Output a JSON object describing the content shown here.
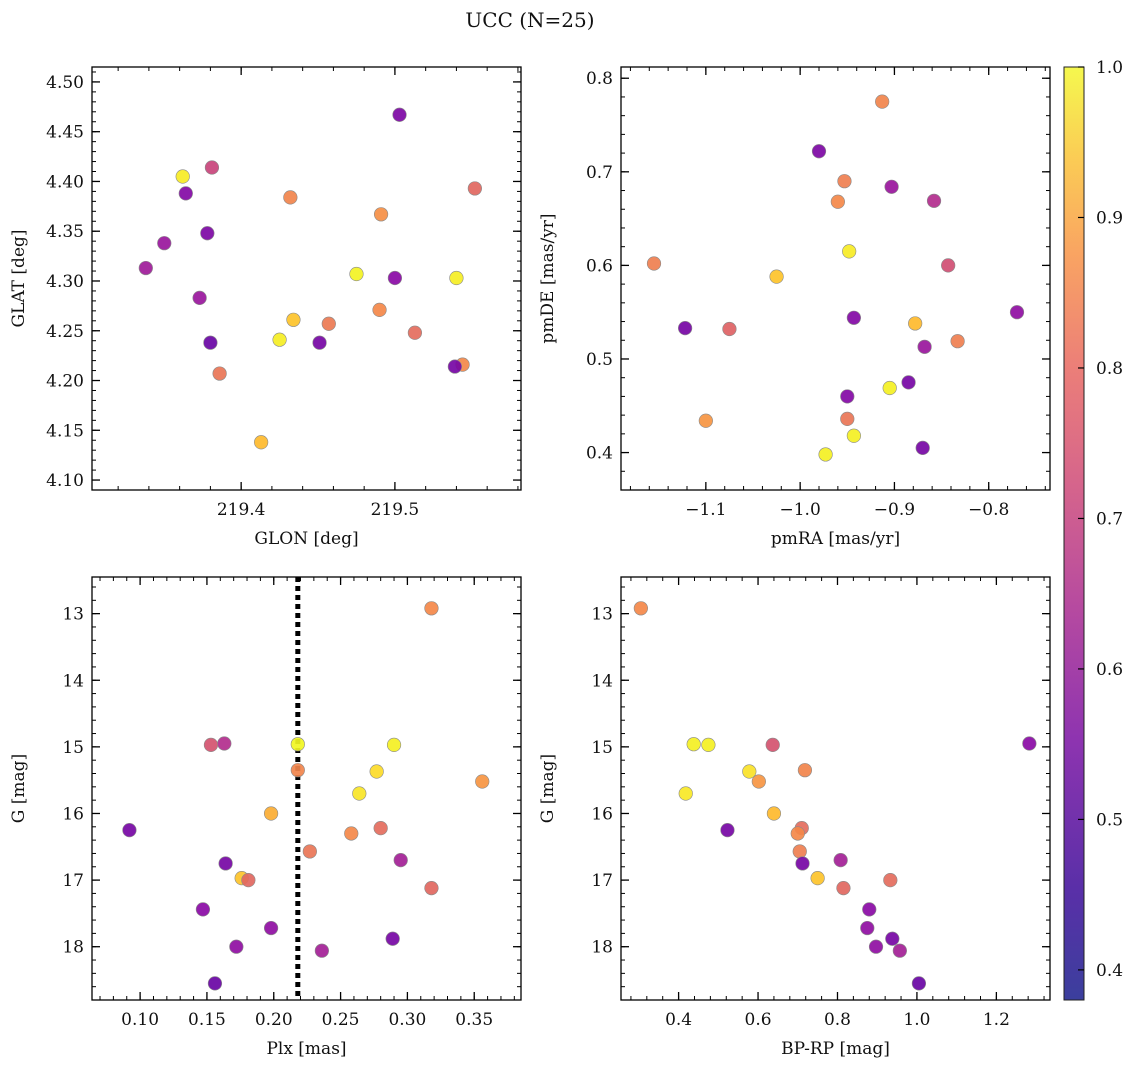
{
  "figure": {
    "title": "UCC (N=25)"
  },
  "colorbar": {
    "range": [
      0.38,
      1.0
    ],
    "ticks": [
      0.4,
      0.5,
      0.6,
      0.7,
      0.8,
      0.9,
      1.0
    ],
    "tick_labels": [
      "0.4",
      "0.5",
      "0.6",
      "0.7",
      "0.8",
      "0.9",
      "1.0"
    ],
    "colormap": "plasma"
  },
  "chart_data": [
    {
      "type": "scatter",
      "xlabel": "GLON [deg]",
      "ylabel": "GLAT [deg]",
      "xlim": [
        219.303,
        219.582
      ],
      "ylim": [
        4.09,
        4.515
      ],
      "xticks": [
        219.4,
        219.5
      ],
      "xtick_labels": [
        "219.4",
        "219.5"
      ],
      "yticks": [
        4.1,
        4.15,
        4.2,
        4.25,
        4.3,
        4.35,
        4.4,
        4.45,
        4.5
      ],
      "ytick_labels": [
        "4.10",
        "4.15",
        "4.20",
        "4.25",
        "4.30",
        "4.35",
        "4.40",
        "4.45",
        "4.50"
      ],
      "grid": false,
      "points": [
        {
          "x": 219.503,
          "y": 4.467,
          "c": 0.45
        },
        {
          "x": 219.381,
          "y": 4.414,
          "c": 0.6
        },
        {
          "x": 219.362,
          "y": 4.405,
          "c": 0.95
        },
        {
          "x": 219.552,
          "y": 4.393,
          "c": 0.67
        },
        {
          "x": 219.364,
          "y": 4.388,
          "c": 0.46
        },
        {
          "x": 219.432,
          "y": 4.384,
          "c": 0.73
        },
        {
          "x": 219.491,
          "y": 4.367,
          "c": 0.75
        },
        {
          "x": 219.378,
          "y": 4.348,
          "c": 0.45
        },
        {
          "x": 219.35,
          "y": 4.338,
          "c": 0.5
        },
        {
          "x": 219.338,
          "y": 4.313,
          "c": 0.51
        },
        {
          "x": 219.475,
          "y": 4.307,
          "c": 0.98
        },
        {
          "x": 219.54,
          "y": 4.303,
          "c": 0.96
        },
        {
          "x": 219.5,
          "y": 4.303,
          "c": 0.47
        },
        {
          "x": 219.373,
          "y": 4.283,
          "c": 0.5
        },
        {
          "x": 219.49,
          "y": 4.271,
          "c": 0.74
        },
        {
          "x": 219.434,
          "y": 4.261,
          "c": 0.84
        },
        {
          "x": 219.457,
          "y": 4.257,
          "c": 0.71
        },
        {
          "x": 219.513,
          "y": 4.248,
          "c": 0.68
        },
        {
          "x": 219.425,
          "y": 4.241,
          "c": 0.96
        },
        {
          "x": 219.38,
          "y": 4.238,
          "c": 0.42
        },
        {
          "x": 219.451,
          "y": 4.238,
          "c": 0.44
        },
        {
          "x": 219.544,
          "y": 4.216,
          "c": 0.74
        },
        {
          "x": 219.539,
          "y": 4.214,
          "c": 0.44
        },
        {
          "x": 219.386,
          "y": 4.207,
          "c": 0.7
        },
        {
          "x": 219.413,
          "y": 4.138,
          "c": 0.82
        }
      ]
    },
    {
      "type": "scatter",
      "xlabel": "pmRA [mas/yr]",
      "ylabel": "pmDE [mas/yr]",
      "xlim": [
        -1.19,
        -0.735
      ],
      "ylim": [
        0.36,
        0.812
      ],
      "xticks": [
        -1.1,
        -1.0,
        -0.9,
        -0.8
      ],
      "xtick_labels": [
        "−1.1",
        "−1.0",
        "−0.9",
        "−0.8"
      ],
      "yticks": [
        0.4,
        0.5,
        0.6,
        0.7,
        0.8
      ],
      "ytick_labels": [
        "0.4",
        "0.5",
        "0.6",
        "0.7",
        "0.8"
      ],
      "grid": false,
      "points": [
        {
          "x": -0.913,
          "y": 0.775,
          "c": 0.73
        },
        {
          "x": -0.98,
          "y": 0.722,
          "c": 0.45
        },
        {
          "x": -0.953,
          "y": 0.69,
          "c": 0.72
        },
        {
          "x": -0.903,
          "y": 0.684,
          "c": 0.5
        },
        {
          "x": -0.96,
          "y": 0.668,
          "c": 0.74
        },
        {
          "x": -0.858,
          "y": 0.669,
          "c": 0.55
        },
        {
          "x": -0.948,
          "y": 0.615,
          "c": 0.95
        },
        {
          "x": -1.155,
          "y": 0.602,
          "c": 0.72
        },
        {
          "x": -0.843,
          "y": 0.6,
          "c": 0.62
        },
        {
          "x": -1.025,
          "y": 0.588,
          "c": 0.84
        },
        {
          "x": -0.77,
          "y": 0.55,
          "c": 0.48
        },
        {
          "x": -0.943,
          "y": 0.544,
          "c": 0.46
        },
        {
          "x": -0.878,
          "y": 0.538,
          "c": 0.82
        },
        {
          "x": -1.122,
          "y": 0.533,
          "c": 0.44
        },
        {
          "x": -1.075,
          "y": 0.532,
          "c": 0.66
        },
        {
          "x": -0.833,
          "y": 0.519,
          "c": 0.72
        },
        {
          "x": -0.868,
          "y": 0.513,
          "c": 0.5
        },
        {
          "x": -0.885,
          "y": 0.475,
          "c": 0.44
        },
        {
          "x": -0.905,
          "y": 0.469,
          "c": 0.97
        },
        {
          "x": -0.95,
          "y": 0.46,
          "c": 0.46
        },
        {
          "x": -0.95,
          "y": 0.436,
          "c": 0.7
        },
        {
          "x": -1.1,
          "y": 0.434,
          "c": 0.76
        },
        {
          "x": -0.943,
          "y": 0.418,
          "c": 0.97
        },
        {
          "x": -0.87,
          "y": 0.405,
          "c": 0.44
        },
        {
          "x": -0.973,
          "y": 0.398,
          "c": 0.97
        }
      ]
    },
    {
      "type": "scatter",
      "xlabel": "Plx [mas]",
      "ylabel": "G [mag]",
      "xlim": [
        0.064,
        0.385
      ],
      "ylim": [
        18.8,
        12.45
      ],
      "y_inverted": true,
      "xticks": [
        0.1,
        0.15,
        0.2,
        0.25,
        0.3,
        0.35
      ],
      "xtick_labels": [
        "0.10",
        "0.15",
        "0.20",
        "0.25",
        "0.30",
        "0.35"
      ],
      "yticks": [
        13,
        14,
        15,
        16,
        17,
        18
      ],
      "ytick_labels": [
        "13",
        "14",
        "15",
        "16",
        "17",
        "18"
      ],
      "grid": false,
      "vline": {
        "x": 0.218,
        "style": "dotted",
        "color": "#000000"
      },
      "points": [
        {
          "x": 0.318,
          "y": 12.92,
          "c": 0.74
        },
        {
          "x": 0.163,
          "y": 14.95,
          "c": 0.55
        },
        {
          "x": 0.153,
          "y": 14.97,
          "c": 0.63
        },
        {
          "x": 0.218,
          "y": 14.96,
          "c": 0.99
        },
        {
          "x": 0.29,
          "y": 14.97,
          "c": 0.97
        },
        {
          "x": 0.218,
          "y": 15.35,
          "c": 0.73
        },
        {
          "x": 0.277,
          "y": 15.37,
          "c": 0.9
        },
        {
          "x": 0.356,
          "y": 15.52,
          "c": 0.76
        },
        {
          "x": 0.264,
          "y": 15.7,
          "c": 0.93
        },
        {
          "x": 0.198,
          "y": 16.0,
          "c": 0.8
        },
        {
          "x": 0.28,
          "y": 16.22,
          "c": 0.68
        },
        {
          "x": 0.092,
          "y": 16.25,
          "c": 0.44
        },
        {
          "x": 0.258,
          "y": 16.3,
          "c": 0.74
        },
        {
          "x": 0.227,
          "y": 16.57,
          "c": 0.7
        },
        {
          "x": 0.295,
          "y": 16.7,
          "c": 0.52
        },
        {
          "x": 0.164,
          "y": 16.75,
          "c": 0.44
        },
        {
          "x": 0.176,
          "y": 16.97,
          "c": 0.84
        },
        {
          "x": 0.181,
          "y": 17.0,
          "c": 0.67
        },
        {
          "x": 0.318,
          "y": 17.12,
          "c": 0.67
        },
        {
          "x": 0.147,
          "y": 17.44,
          "c": 0.47
        },
        {
          "x": 0.198,
          "y": 17.72,
          "c": 0.48
        },
        {
          "x": 0.289,
          "y": 17.88,
          "c": 0.44
        },
        {
          "x": 0.172,
          "y": 18.0,
          "c": 0.48
        },
        {
          "x": 0.236,
          "y": 18.06,
          "c": 0.52
        },
        {
          "x": 0.156,
          "y": 18.55,
          "c": 0.42
        }
      ]
    },
    {
      "type": "scatter",
      "xlabel": "BP-RP [mag]",
      "ylabel": "G [mag]",
      "xlim": [
        0.255,
        1.335
      ],
      "ylim": [
        18.8,
        12.45
      ],
      "y_inverted": true,
      "xticks": [
        0.4,
        0.6,
        0.8,
        1.0,
        1.2
      ],
      "xtick_labels": [
        "0.4",
        "0.6",
        "0.8",
        "1.0",
        "1.2"
      ],
      "yticks": [
        13,
        14,
        15,
        16,
        17,
        18
      ],
      "ytick_labels": [
        "13",
        "14",
        "15",
        "16",
        "17",
        "18"
      ],
      "grid": false,
      "points": [
        {
          "x": 0.305,
          "y": 12.92,
          "c": 0.74
        },
        {
          "x": 1.283,
          "y": 14.95,
          "c": 0.47
        },
        {
          "x": 0.438,
          "y": 14.96,
          "c": 0.97
        },
        {
          "x": 0.475,
          "y": 14.97,
          "c": 0.97
        },
        {
          "x": 0.637,
          "y": 14.97,
          "c": 0.63
        },
        {
          "x": 0.718,
          "y": 15.35,
          "c": 0.73
        },
        {
          "x": 0.578,
          "y": 15.37,
          "c": 0.92
        },
        {
          "x": 0.602,
          "y": 15.52,
          "c": 0.76
        },
        {
          "x": 0.418,
          "y": 15.7,
          "c": 0.94
        },
        {
          "x": 0.64,
          "y": 16.0,
          "c": 0.82
        },
        {
          "x": 0.71,
          "y": 16.22,
          "c": 0.68
        },
        {
          "x": 0.523,
          "y": 16.25,
          "c": 0.44
        },
        {
          "x": 0.7,
          "y": 16.3,
          "c": 0.74
        },
        {
          "x": 0.705,
          "y": 16.57,
          "c": 0.72
        },
        {
          "x": 0.808,
          "y": 16.7,
          "c": 0.52
        },
        {
          "x": 0.712,
          "y": 16.75,
          "c": 0.44
        },
        {
          "x": 0.75,
          "y": 16.97,
          "c": 0.84
        },
        {
          "x": 0.933,
          "y": 17.0,
          "c": 0.68
        },
        {
          "x": 0.815,
          "y": 17.12,
          "c": 0.67
        },
        {
          "x": 0.88,
          "y": 17.44,
          "c": 0.47
        },
        {
          "x": 0.875,
          "y": 17.72,
          "c": 0.48
        },
        {
          "x": 0.938,
          "y": 17.88,
          "c": 0.44
        },
        {
          "x": 0.897,
          "y": 18.0,
          "c": 0.48
        },
        {
          "x": 0.957,
          "y": 18.06,
          "c": 0.52
        },
        {
          "x": 1.005,
          "y": 18.55,
          "c": 0.42
        }
      ]
    }
  ]
}
